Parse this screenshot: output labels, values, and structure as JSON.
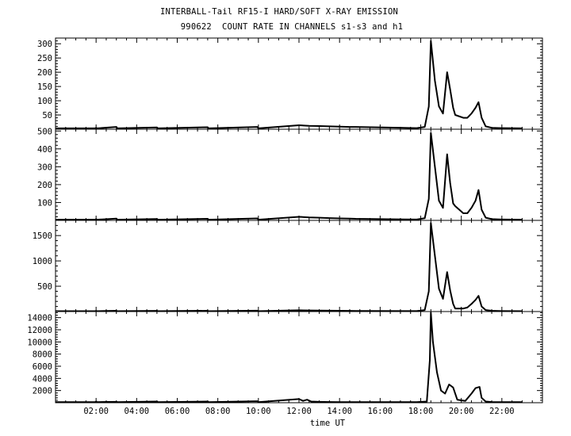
{
  "title_line1": "INTERBALL-Tail RF15-I HARD/SOFT X-RAY EMISSION",
  "title_line2": "990622  COUNT RATE IN CHANNELS s1-s3 and h1",
  "chart_data": {
    "type": "line",
    "title": "INTERBALL-Tail RF15-I HARD/SOFT X-RAY EMISSION",
    "subtitle": "990622  COUNT RATE IN CHANNELS s1-s3 and h1",
    "xlabel": "time UT",
    "x_unit": "hours UT",
    "xlim": [
      0,
      24
    ],
    "x_ticks": [
      "02:00",
      "04:00",
      "06:00",
      "08:00",
      "10:00",
      "12:00",
      "14:00",
      "16:00",
      "18:00",
      "20:00",
      "22:00"
    ],
    "x_tick_hours": [
      2,
      4,
      6,
      8,
      10,
      12,
      14,
      16,
      18,
      20,
      22
    ],
    "panels": [
      {
        "channel": "s1",
        "ylim": [
          0,
          320
        ],
        "y_ticks": [
          50,
          100,
          150,
          200,
          250,
          300
        ],
        "x": [
          0.0,
          0.5,
          1.5,
          1.95,
          2.0,
          2.05,
          3.0,
          3.05,
          5.0,
          5.05,
          7.5,
          7.55,
          9.95,
          10.0,
          12.0,
          12.5,
          13.0,
          13.5,
          14.0,
          14.5,
          14.8,
          17.8,
          18.2,
          18.4,
          18.5,
          18.7,
          18.9,
          19.1,
          19.3,
          19.45,
          19.6,
          19.7,
          20.1,
          20.3,
          20.5,
          20.7,
          20.85,
          21.0,
          21.2,
          21.5,
          22.0,
          23.0
        ],
        "values": [
          3,
          3,
          3,
          3,
          5,
          3,
          8,
          3,
          6,
          3,
          7,
          3,
          8,
          3,
          14,
          12,
          11,
          10,
          9,
          8,
          8,
          4,
          8,
          80,
          310,
          170,
          80,
          55,
          200,
          140,
          75,
          50,
          40,
          40,
          55,
          75,
          95,
          40,
          10,
          5,
          4,
          3
        ]
      },
      {
        "channel": "s2",
        "ylim": [
          0,
          510
        ],
        "y_ticks": [
          100,
          200,
          300,
          400,
          500
        ],
        "x": [
          0.0,
          0.5,
          1.5,
          1.95,
          2.0,
          2.05,
          3.0,
          3.05,
          5.0,
          5.05,
          7.5,
          7.55,
          9.95,
          10.0,
          12.0,
          12.5,
          13.0,
          13.5,
          14.0,
          14.5,
          14.8,
          17.8,
          18.2,
          18.4,
          18.5,
          18.7,
          18.9,
          19.1,
          19.3,
          19.45,
          19.6,
          19.7,
          20.1,
          20.3,
          20.5,
          20.7,
          20.85,
          21.0,
          21.2,
          21.5,
          22.0,
          23.0
        ],
        "values": [
          4,
          4,
          4,
          4,
          7,
          4,
          10,
          4,
          8,
          4,
          9,
          4,
          11,
          4,
          20,
          17,
          15,
          13,
          11,
          10,
          9,
          5,
          12,
          120,
          490,
          300,
          110,
          70,
          370,
          210,
          95,
          80,
          40,
          40,
          70,
          110,
          170,
          60,
          15,
          7,
          5,
          4
        ]
      },
      {
        "channel": "s3",
        "ylim": [
          0,
          1800
        ],
        "y_ticks": [
          500,
          1000,
          1500
        ],
        "x": [
          0.0,
          0.5,
          1.5,
          1.95,
          2.0,
          2.05,
          3.0,
          3.05,
          5.0,
          5.05,
          7.5,
          7.55,
          9.95,
          10.0,
          12.0,
          12.5,
          13.0,
          13.5,
          14.0,
          14.5,
          14.8,
          17.8,
          18.2,
          18.4,
          18.5,
          18.7,
          18.9,
          19.1,
          19.3,
          19.45,
          19.6,
          19.7,
          20.1,
          20.3,
          20.5,
          20.7,
          20.85,
          21.0,
          21.2,
          21.5,
          22.0,
          23.0
        ],
        "values": [
          8,
          8,
          8,
          8,
          12,
          8,
          16,
          8,
          14,
          8,
          15,
          8,
          18,
          8,
          25,
          22,
          20,
          18,
          16,
          14,
          12,
          10,
          30,
          400,
          1750,
          1100,
          450,
          250,
          780,
          420,
          150,
          60,
          60,
          80,
          150,
          230,
          310,
          100,
          30,
          15,
          10,
          8
        ]
      },
      {
        "channel": "h1",
        "ylim": [
          0,
          15000
        ],
        "y_ticks": [
          2000,
          4000,
          6000,
          8000,
          10000,
          12000,
          14000
        ],
        "x": [
          0.0,
          0.5,
          1.5,
          1.95,
          2.0,
          2.05,
          3.0,
          3.05,
          5.0,
          5.05,
          7.5,
          7.55,
          9.95,
          10.0,
          12.0,
          12.2,
          12.4,
          12.6,
          13.0,
          13.5,
          14.0,
          17.8,
          18.3,
          18.45,
          18.5,
          18.6,
          18.8,
          19.0,
          19.2,
          19.4,
          19.6,
          19.8,
          20.2,
          20.5,
          20.7,
          20.9,
          21.0,
          21.2,
          21.5,
          22.0,
          23.0
        ],
        "values": [
          100,
          100,
          100,
          100,
          200,
          100,
          150,
          100,
          200,
          100,
          200,
          100,
          250,
          100,
          600,
          300,
          500,
          200,
          150,
          120,
          100,
          100,
          200,
          7000,
          14800,
          10000,
          5000,
          2000,
          1500,
          3000,
          2500,
          500,
          300,
          1500,
          2400,
          2600,
          800,
          200,
          120,
          100,
          100
        ]
      }
    ],
    "grid": false,
    "legend": "none"
  }
}
